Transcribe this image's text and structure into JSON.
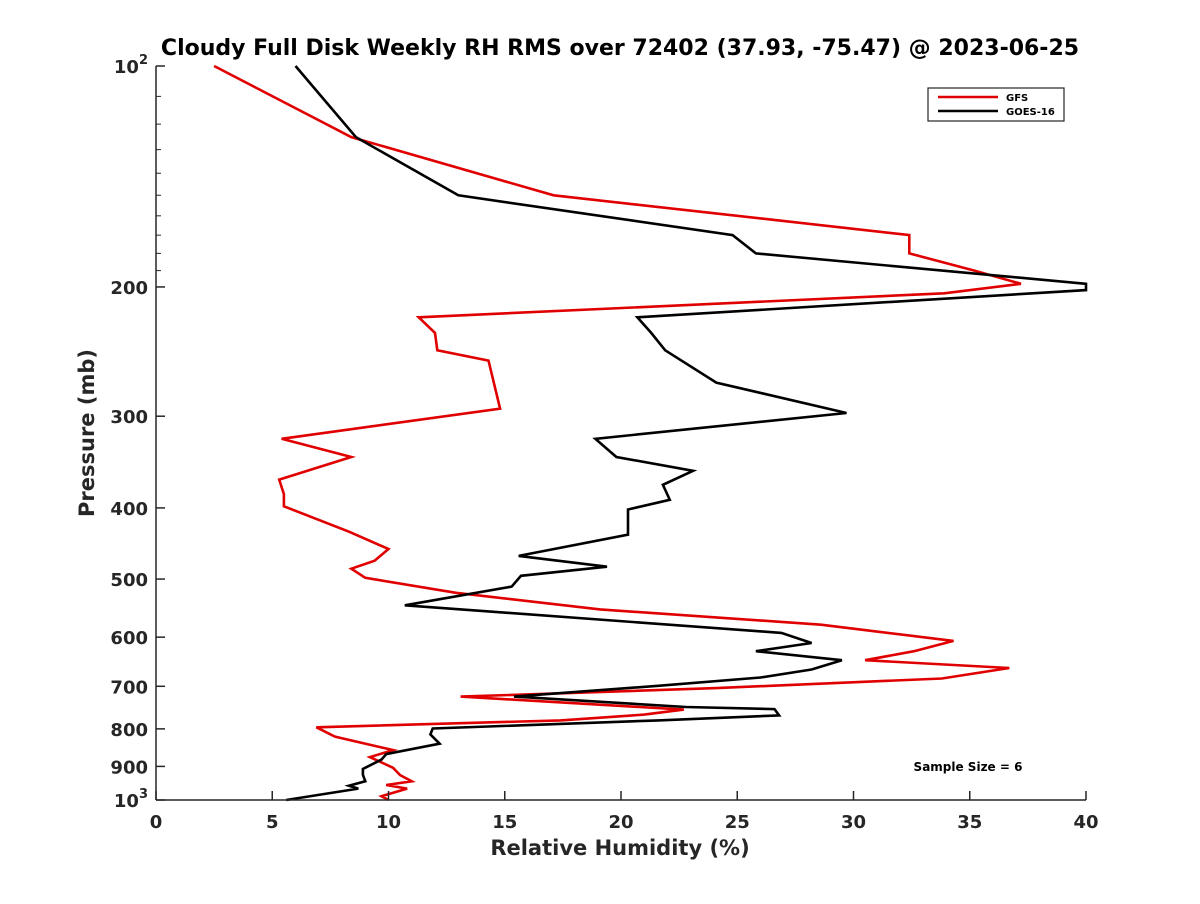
{
  "chart_data": {
    "type": "line",
    "title": "Cloudy Full Disk Weekly RH RMS over 72402 (37.93, -75.47) @ 2023-06-25",
    "xlabel": "Relative Humidity (%)",
    "ylabel": "Pressure (mb)",
    "xlim": [
      0,
      40
    ],
    "ylim": [
      100,
      1000
    ],
    "y_scale": "log",
    "y_reversed": true,
    "xticks": [
      0,
      5,
      10,
      15,
      20,
      25,
      30,
      35,
      40
    ],
    "xtick_labels": [
      "0",
      "5",
      "10",
      "15",
      "20",
      "25",
      "30",
      "35",
      "40"
    ],
    "yticks": [
      100,
      200,
      300,
      400,
      500,
      600,
      700,
      800,
      900,
      1000
    ],
    "ytick_labels": [
      {
        "base": "10",
        "sup": "2"
      },
      {
        "base": "200",
        "sup": ""
      },
      {
        "base": "300",
        "sup": ""
      },
      {
        "base": "400",
        "sup": ""
      },
      {
        "base": "500",
        "sup": ""
      },
      {
        "base": "600",
        "sup": ""
      },
      {
        "base": "700",
        "sup": ""
      },
      {
        "base": "800",
        "sup": ""
      },
      {
        "base": "900",
        "sup": ""
      },
      {
        "base": "10",
        "sup": "3"
      }
    ],
    "grid": false,
    "legend_position": "top-right",
    "annotation": "Sample Size = 6",
    "series": [
      {
        "name": "GFS",
        "color": "#e00000",
        "x": [
          2.5,
          8.4,
          17.1,
          32.4,
          32.4,
          35.2,
          37.2,
          33.9,
          11.3,
          12.0,
          12.1,
          14.3,
          14.8,
          5.4,
          8.4,
          5.3,
          5.5,
          5.5,
          8.3,
          10.0,
          9.4,
          8.4,
          9.0,
          12.9,
          19.1,
          28.6,
          34.3,
          32.6,
          30.5,
          36.7,
          33.8,
          24.1,
          13.1,
          22.7,
          21.0,
          17.4,
          6.9,
          7.7,
          10.2,
          9.2,
          10.2,
          10.5,
          11.0,
          9.9,
          10.8,
          9.7,
          10.0
        ],
        "y": [
          100,
          125,
          150,
          170,
          180,
          190,
          198,
          204,
          220,
          231,
          244,
          252,
          293,
          322,
          341,
          366,
          383,
          398,
          431,
          455,
          472,
          484,
          498,
          522,
          550,
          577,
          607,
          627,
          645,
          661,
          683,
          704,
          723,
          753,
          765,
          779,
          796,
          820,
          855,
          874,
          904,
          925,
          943,
          954,
          965,
          988,
          1000
        ]
      },
      {
        "name": "GOES-16",
        "color": "#000000",
        "x": [
          6.0,
          8.6,
          13.0,
          24.8,
          25.8,
          40.0,
          40.0,
          20.7,
          21.3,
          21.9,
          24.1,
          29.7,
          18.9,
          19.8,
          23.1,
          21.8,
          22.1,
          20.3,
          20.3,
          15.6,
          19.4,
          15.7,
          15.3,
          10.7,
          26.9,
          28.2,
          25.8,
          29.5,
          28.2,
          26.0,
          21.6,
          15.4,
          22.8,
          26.6,
          26.8,
          21.6,
          11.9,
          11.8,
          12.2,
          9.9,
          9.7,
          8.9,
          8.9,
          9.0,
          8.3,
          8.7,
          5.6
        ],
        "y": [
          100,
          125,
          150,
          170,
          180,
          198,
          202,
          220,
          231,
          244,
          270,
          297,
          322,
          341,
          356,
          372,
          390,
          402,
          435,
          465,
          481,
          495,
          512,
          543,
          592,
          611,
          627,
          645,
          664,
          681,
          699,
          723,
          747,
          752,
          767,
          779,
          799,
          814,
          838,
          866,
          881,
          907,
          924,
          943,
          956,
          965,
          1000
        ]
      }
    ]
  }
}
